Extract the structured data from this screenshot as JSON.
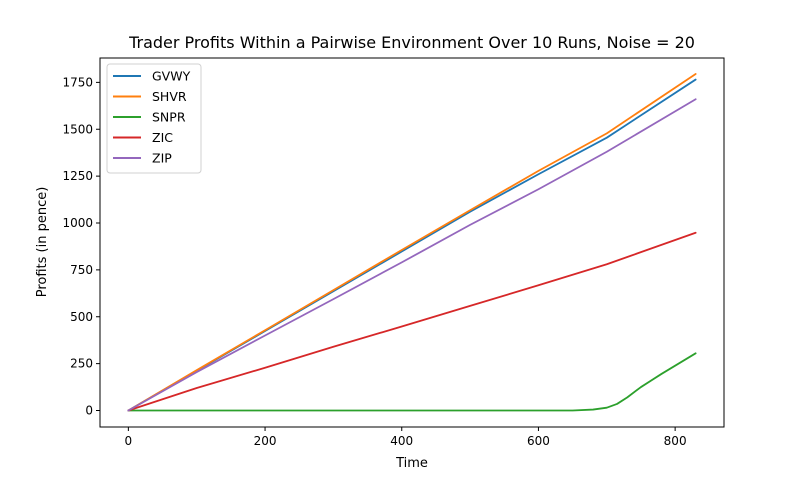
{
  "chart_data": {
    "type": "line",
    "title": "Trader Profits Within a Pairwise Environment Over 10 Runs, Noise = 20",
    "xlabel": "Time",
    "ylabel": "Profits (in pence)",
    "xlim": [
      -41.5,
      871.5
    ],
    "ylim": [
      -88,
      1880
    ],
    "xticks": [
      0,
      200,
      400,
      600,
      800
    ],
    "yticks": [
      0,
      250,
      500,
      750,
      1000,
      1250,
      1500,
      1750
    ],
    "grid": false,
    "legend_position": "top-left",
    "series": [
      {
        "name": "GVWY",
        "color": "#1f77b4",
        "x": [
          0,
          100,
          200,
          300,
          400,
          500,
          600,
          700,
          830
        ],
        "y": [
          0,
          212,
          424,
          636,
          848,
          1060,
          1260,
          1455,
          1765
        ]
      },
      {
        "name": "SHVR",
        "color": "#ff7f0e",
        "x": [
          0,
          100,
          200,
          300,
          400,
          500,
          600,
          700,
          830
        ],
        "y": [
          0,
          215,
          428,
          642,
          856,
          1068,
          1278,
          1478,
          1795
        ]
      },
      {
        "name": "SNPR",
        "color": "#2ca02c",
        "x": [
          0,
          100,
          200,
          300,
          400,
          500,
          600,
          650,
          680,
          700,
          715,
          730,
          750,
          780,
          830
        ],
        "y": [
          0,
          0,
          0,
          0,
          0,
          0,
          0,
          0,
          5,
          15,
          35,
          70,
          125,
          195,
          305
        ]
      },
      {
        "name": "ZIC",
        "color": "#d62728",
        "x": [
          0,
          100,
          200,
          300,
          400,
          500,
          600,
          700,
          830
        ],
        "y": [
          0,
          120,
          228,
          340,
          448,
          558,
          668,
          780,
          948
        ]
      },
      {
        "name": "ZIP",
        "color": "#9467bd",
        "x": [
          0,
          100,
          200,
          300,
          400,
          500,
          600,
          700,
          830
        ],
        "y": [
          0,
          205,
          400,
          594,
          790,
          990,
          1180,
          1380,
          1660
        ]
      }
    ]
  }
}
